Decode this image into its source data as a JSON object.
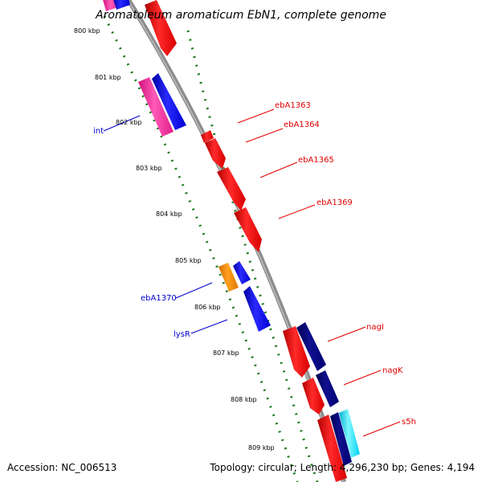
{
  "title": "Aromatoleum aromaticum EbN1, complete genome",
  "footer": {
    "accession": "Accession: NC_006513",
    "summary": "Topology: circular; Length: 4,296,230 bp; Genes: 4,194"
  },
  "ticks": [
    "800 kbp",
    "801 kbp",
    "802 kbp",
    "803 kbp",
    "804 kbp",
    "805 kbp",
    "806 kbp",
    "807 kbp",
    "808 kbp",
    "809 kbp"
  ],
  "gene_labels": [
    {
      "id": "ebA1363",
      "text": "ebA1363",
      "color": "#e00000"
    },
    {
      "id": "ebA1364",
      "text": "ebA1364",
      "color": "#e00000"
    },
    {
      "id": "ebA1365",
      "text": "ebA1365",
      "color": "#e00000"
    },
    {
      "id": "ebA1369",
      "text": "ebA1369",
      "color": "#e00000"
    },
    {
      "id": "nagI",
      "text": "nagI",
      "color": "#e00000"
    },
    {
      "id": "nagK",
      "text": "nagK",
      "color": "#e00000"
    },
    {
      "id": "s5h",
      "text": "s5h",
      "color": "#e00000"
    },
    {
      "id": "int",
      "text": "int",
      "color": "#0000cc"
    },
    {
      "id": "ebA1370",
      "text": "ebA1370",
      "color": "#0000cc"
    },
    {
      "id": "lysR",
      "text": "lysR",
      "color": "#0000cc"
    }
  ],
  "colors": {
    "backbone": "#8c8c8c",
    "dotted_track": "#1a7a1a",
    "forward_cds": "#ff0000",
    "reverse_cds": "#0000ff",
    "dark_cds": "#000080",
    "magenta_cds": "#ff3aa8",
    "orange_cds": "#ff8c00",
    "cyan_cds": "#00e5ff"
  }
}
